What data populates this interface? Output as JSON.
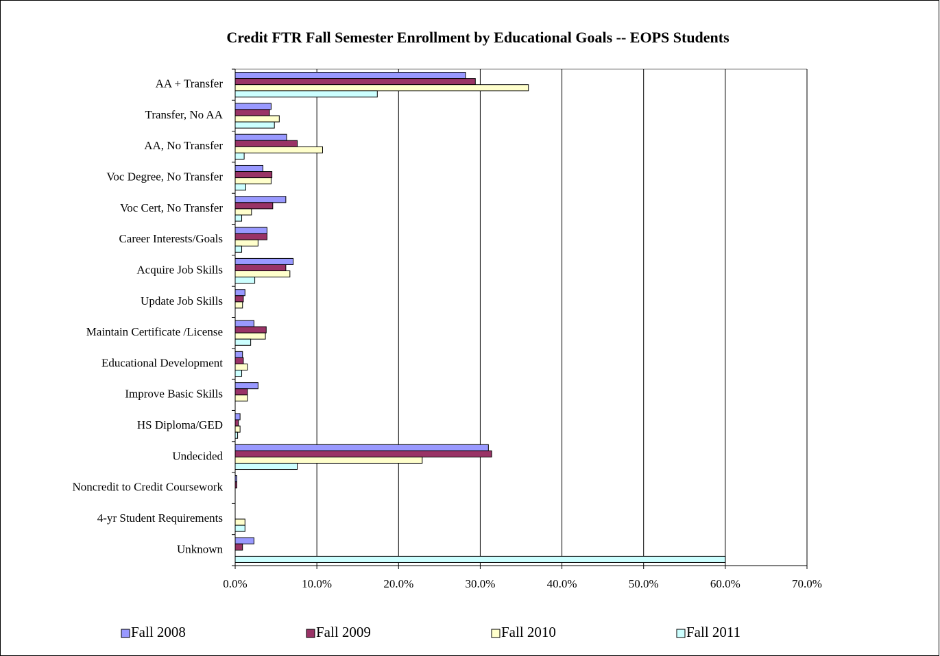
{
  "chart_data": {
    "type": "barh",
    "title": "Credit FTR Fall Semester Enrollment by Educational Goals -- EOPS Students",
    "categories": [
      "AA + Transfer",
      "Transfer, No AA",
      "AA, No Transfer",
      "Voc Degree, No Transfer",
      "Voc Cert, No Transfer",
      "Career Interests/Goals",
      "Acquire Job Skills",
      "Update Job Skills",
      "Maintain Certificate /License",
      "Educational Development",
      "Improve Basic Skills",
      "HS Diploma/GED",
      "Undecided",
      "Noncredit to Credit Coursework",
      "4-yr Student Requirements",
      "Unknown"
    ],
    "series": [
      {
        "name": "Fall 2008",
        "color": "#9999ff",
        "values": [
          28.2,
          4.4,
          6.3,
          3.4,
          6.2,
          3.9,
          7.1,
          1.2,
          2.3,
          0.9,
          2.8,
          0.6,
          31.0,
          0.2,
          0,
          2.3
        ]
      },
      {
        "name": "Fall 2009",
        "color": "#993366",
        "values": [
          29.4,
          4.2,
          7.6,
          4.5,
          4.6,
          3.9,
          6.2,
          1.0,
          3.8,
          1.0,
          1.5,
          0.4,
          31.4,
          0.2,
          0,
          0.9
        ]
      },
      {
        "name": "Fall 2010",
        "color": "#ffffcc",
        "values": [
          35.9,
          5.4,
          10.7,
          4.4,
          2.0,
          2.8,
          6.7,
          0.9,
          3.7,
          1.5,
          1.5,
          0.6,
          22.9,
          0,
          1.2,
          0
        ]
      },
      {
        "name": "Fall 2011",
        "color": "#ccffff",
        "values": [
          17.4,
          4.8,
          1.1,
          1.3,
          0.8,
          0.8,
          2.4,
          0,
          1.9,
          0.8,
          0,
          0.3,
          7.6,
          0,
          1.2,
          60.0
        ]
      }
    ],
    "xlim": [
      0,
      70
    ],
    "xticks": [
      {
        "value": 0,
        "label": "0.0%"
      },
      {
        "value": 10,
        "label": "10.0%"
      },
      {
        "value": 20,
        "label": "20.0%"
      },
      {
        "value": 30,
        "label": "30.0%"
      },
      {
        "value": 40,
        "label": "40.0%"
      },
      {
        "value": 50,
        "label": "50.0%"
      },
      {
        "value": 60,
        "label": "60.0%"
      },
      {
        "value": 70,
        "label": "70.0%"
      }
    ],
    "grid": true,
    "legend": "bottom"
  }
}
